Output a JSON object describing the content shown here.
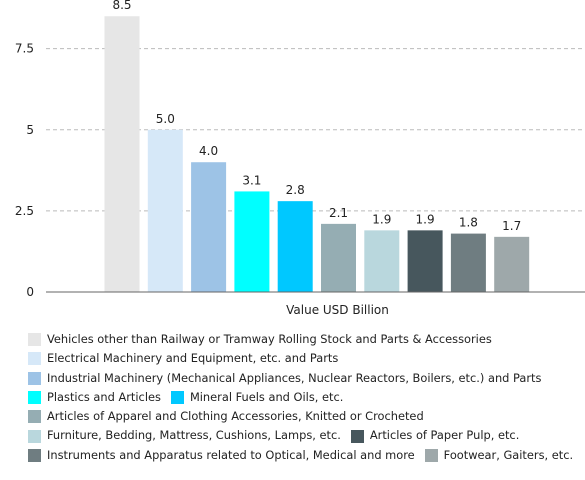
{
  "chart_data": {
    "type": "bar",
    "categories": [
      "Vehicles other than Railway or Tramway Rolling Stock and Parts & Accessories",
      "Electrical Machinery and Equipment, etc. and Parts",
      "Industrial Machinery (Mechanical Appliances, Nuclear Reactors, Boilers, etc.) and Parts",
      "Plastics and Articles",
      "Mineral Fuels and Oils, etc.",
      "Articles of Apparel and Clothing Accessories, Knitted or Crocheted",
      "Furniture, Bedding, Mattress, Cushions, Lamps, etc.",
      "Articles of Paper Pulp, etc.",
      "Instruments and Apparatus related to Optical, Medical and more",
      "Footwear, Gaiters, etc."
    ],
    "values": [
      8.5,
      5.0,
      4.0,
      3.1,
      2.8,
      2.1,
      1.9,
      1.9,
      1.8,
      1.7
    ],
    "value_labels": [
      "8.5",
      "5.0",
      "4.0",
      "3.1",
      "2.8",
      "2.1",
      "1.9",
      "1.9",
      "1.8",
      "1.7"
    ],
    "colors": [
      "#e6e6e6",
      "#d6e8f8",
      "#9dc3e6",
      "#00ffff",
      "#00c8ff",
      "#95adb3",
      "#b9d7dd",
      "#47575d",
      "#6f7d81",
      "#9ea8aa"
    ],
    "xlabel": "Value USD Billion",
    "ylabel": "",
    "ylim": [
      0,
      9
    ],
    "yticks": [
      0,
      2.5,
      5,
      7.5
    ],
    "ytick_labels": [
      "0",
      "2.5",
      "5",
      "7.5"
    ],
    "grid": true,
    "legend_position": "bottom",
    "legend_rows": [
      [
        0
      ],
      [
        1
      ],
      [
        2
      ],
      [
        3,
        4
      ],
      [
        5
      ],
      [
        6,
        7
      ],
      [
        8,
        9
      ]
    ]
  }
}
